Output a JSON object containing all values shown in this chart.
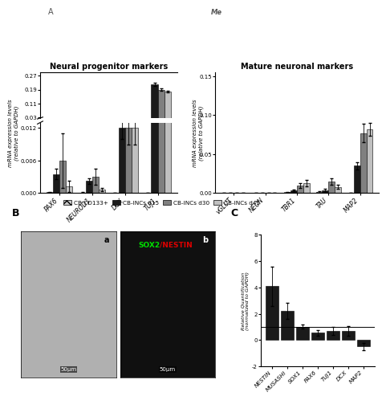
{
  "neural_progenitor": {
    "title": "Neural progenitor markers",
    "categories": [
      "PAX6",
      "NEUROD1",
      "DCX",
      "TUJ1"
    ],
    "ylabel": "mRNA expression levels\n(relative to GAPDH)",
    "series": {
      "CB CD133+": {
        "color": "#c8c8c8",
        "hatch": "xxx",
        "values": [
          0.00015,
          8e-05,
          2e-05,
          2e-05
        ],
        "errors": [
          0.0001,
          5e-05,
          1e-05,
          1e-05
        ]
      },
      "CB-INCs d15": {
        "color": "#1a1a1a",
        "hatch": "",
        "values": [
          0.0035,
          0.0022,
          0.012,
          0.22
        ],
        "errors": [
          0.001,
          0.0005,
          0.002,
          0.008
        ]
      },
      "CB-INCs d30": {
        "color": "#808080",
        "hatch": "",
        "values": [
          0.006,
          0.003,
          0.012,
          0.19
        ],
        "errors": [
          0.005,
          0.0015,
          0.003,
          0.007
        ]
      },
      "CB-INCs d45": {
        "color": "#c0c0c0",
        "hatch": "",
        "values": [
          0.0012,
          0.0006,
          0.012,
          0.18
        ],
        "errors": [
          0.001,
          0.0003,
          0.003,
          0.005
        ]
      }
    }
  },
  "mature_neuronal": {
    "title": "Mature neuronal markers",
    "categories": [
      "vGLUT",
      "NEUN",
      "TBR1",
      "TAU",
      "MAP2"
    ],
    "ylabel": "mRNA expression levels\n(relative to GAPDH)",
    "series": {
      "CB CD133+": {
        "color": "#c8c8c8",
        "hatch": "xxx",
        "values": [
          0.0002,
          0.0003,
          0.001,
          0.001,
          0.0003
        ],
        "errors": [
          0.0001,
          0.0001,
          0.0005,
          0.001,
          0.0001
        ]
      },
      "CB-INCs d15": {
        "color": "#1a1a1a",
        "hatch": "",
        "values": [
          0.0005,
          0.0003,
          0.003,
          0.003,
          0.035
        ],
        "errors": [
          0.0002,
          0.0002,
          0.001,
          0.002,
          0.005
        ]
      },
      "CB-INCs d30": {
        "color": "#808080",
        "hatch": "",
        "values": [
          0.0005,
          0.0004,
          0.01,
          0.015,
          0.077
        ],
        "errors": [
          0.0002,
          0.0002,
          0.003,
          0.004,
          0.012
        ]
      },
      "CB-INCs d45": {
        "color": "#c0c0c0",
        "hatch": "",
        "values": [
          0.0005,
          0.0005,
          0.013,
          0.008,
          0.082
        ],
        "errors": [
          0.0002,
          0.0002,
          0.004,
          0.003,
          0.008
        ]
      }
    }
  },
  "panel_c": {
    "ylabel": "Relative Quantification\n(normalized to GAPDH)",
    "categories": [
      "NESTIN",
      "MUSASHI",
      "SOX1",
      "PAX6",
      "TUJ1",
      "DCX",
      "MAP2"
    ],
    "values": [
      4.1,
      2.2,
      1.0,
      0.55,
      0.7,
      0.7,
      -0.5
    ],
    "errors": [
      1.5,
      0.6,
      0.15,
      0.2,
      0.3,
      0.35,
      0.3
    ],
    "bar_color": "#1a1a1a",
    "ylim": [
      -2,
      8
    ],
    "yticks": [
      -2,
      0,
      2,
      4,
      6,
      8
    ],
    "hline_y": 1.0
  },
  "legend_items": [
    {
      "label": "CB CD133+",
      "color": "#c8c8c8",
      "hatch": "xxx"
    },
    {
      "label": "CB-INCs d15",
      "color": "#1a1a1a",
      "hatch": ""
    },
    {
      "label": "CB-INCs d30",
      "color": "#808080",
      "hatch": ""
    },
    {
      "label": "CB-INCs d45",
      "color": "#c0c0c0",
      "hatch": ""
    }
  ],
  "panel_b_label": "B",
  "panel_c_label": "C",
  "top_label_A": "A",
  "sox2_color": "#00dd00",
  "nestin_color": "#dd0000"
}
